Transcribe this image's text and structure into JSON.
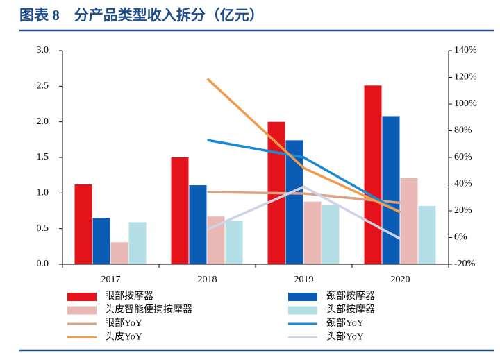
{
  "chart_data": {
    "type": "bar",
    "title": "图表 8　分产品类型收入拆分（亿元）",
    "categories": [
      "2017",
      "2018",
      "2019",
      "2020"
    ],
    "ylim": [
      0,
      3
    ],
    "yticks": [
      {
        "value": 0,
        "label": "0.0"
      },
      0.5,
      {
        "value": 1,
        "label": "1.0"
      },
      1.5,
      {
        "value": 2,
        "label": "2.0"
      },
      2.5,
      {
        "value": 3,
        "label": "3.0"
      }
    ],
    "y2lim": [
      -20,
      140
    ],
    "y2ticks": [
      {
        "value": -20,
        "label": "-20%"
      },
      {
        "value": 0,
        "label": "0%"
      },
      {
        "value": 20,
        "label": "20%"
      },
      {
        "value": 40,
        "label": "40%"
      },
      {
        "value": 60,
        "label": "60%"
      },
      {
        "value": 80,
        "label": "80%"
      },
      {
        "value": 100,
        "label": "100%"
      },
      {
        "value": 120,
        "label": "120%"
      },
      {
        "value": 140,
        "label": "140%"
      }
    ],
    "series": [
      {
        "name": "眼部按摩器",
        "color": "#e3121b",
        "values": [
          1.12,
          1.5,
          2.0,
          2.51
        ]
      },
      {
        "name": "颈部按摩器",
        "color": "#0b5cb5",
        "values": [
          0.65,
          1.11,
          1.74,
          2.08
        ]
      },
      {
        "name": "头皮智能便携按摩器",
        "color": "#e9b8b5",
        "values": [
          0.31,
          0.67,
          0.88,
          1.21
        ]
      },
      {
        "name": "头部按摩器",
        "color": "#b4dfe6",
        "values": [
          0.59,
          0.61,
          0.83,
          0.82
        ]
      },
      {
        "name": "眼部YoY",
        "color": "#d9a185",
        "type": "line",
        "axis": "y2",
        "values": [
          null,
          34,
          33,
          26
        ]
      },
      {
        "name": "颈部YoY",
        "color": "#1a8ad4",
        "type": "line",
        "axis": "y2",
        "values": [
          null,
          73,
          60,
          19
        ]
      },
      {
        "name": "头皮YoY",
        "color": "#f29a4c",
        "type": "line",
        "axis": "y2",
        "values": [
          null,
          119,
          52,
          19
        ]
      },
      {
        "name": "头部YoY",
        "color": "#cdd3e6",
        "type": "line",
        "axis": "y2",
        "values": [
          null,
          6,
          38,
          -1
        ]
      }
    ]
  }
}
